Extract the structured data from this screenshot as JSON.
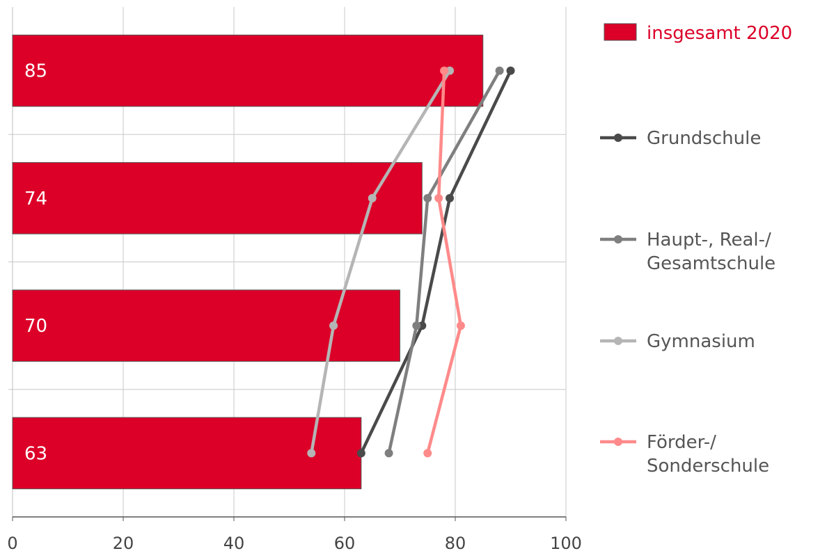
{
  "chart_data": {
    "type": "bar",
    "orientation": "horizontal",
    "xlim": [
      0,
      100
    ],
    "x_ticks": [
      "0",
      "20",
      "40",
      "60",
      "80",
      "100"
    ],
    "grid": true,
    "legend_position": "right",
    "bar_series": {
      "name": "insgesamt 2020",
      "color": "#dc0028",
      "values": [
        85,
        74,
        70,
        63
      ],
      "labels": [
        "85",
        "74",
        "70",
        "63"
      ]
    },
    "line_series": [
      {
        "name": "Grundschule",
        "color": "#4a4a4a",
        "values": [
          90,
          79,
          74,
          63
        ]
      },
      {
        "name": "Haupt-, Real-/ Gesamtschule",
        "color": "#7f7f7f",
        "values": [
          88,
          75,
          73,
          68
        ]
      },
      {
        "name": "Gymnasium",
        "color": "#b5b5b5",
        "values": [
          79,
          65,
          58,
          54
        ]
      },
      {
        "name": "Förder-/ Sonderschule",
        "color": "#ff8a8a",
        "values": [
          78,
          77,
          81,
          75
        ]
      }
    ],
    "legend_lines": [
      [
        "Grundschule"
      ],
      [
        "Haupt-, Real-/",
        "Gesamtschule"
      ],
      [
        "Gymnasium"
      ],
      [
        "Förder-/",
        "Sonderschule"
      ]
    ]
  }
}
